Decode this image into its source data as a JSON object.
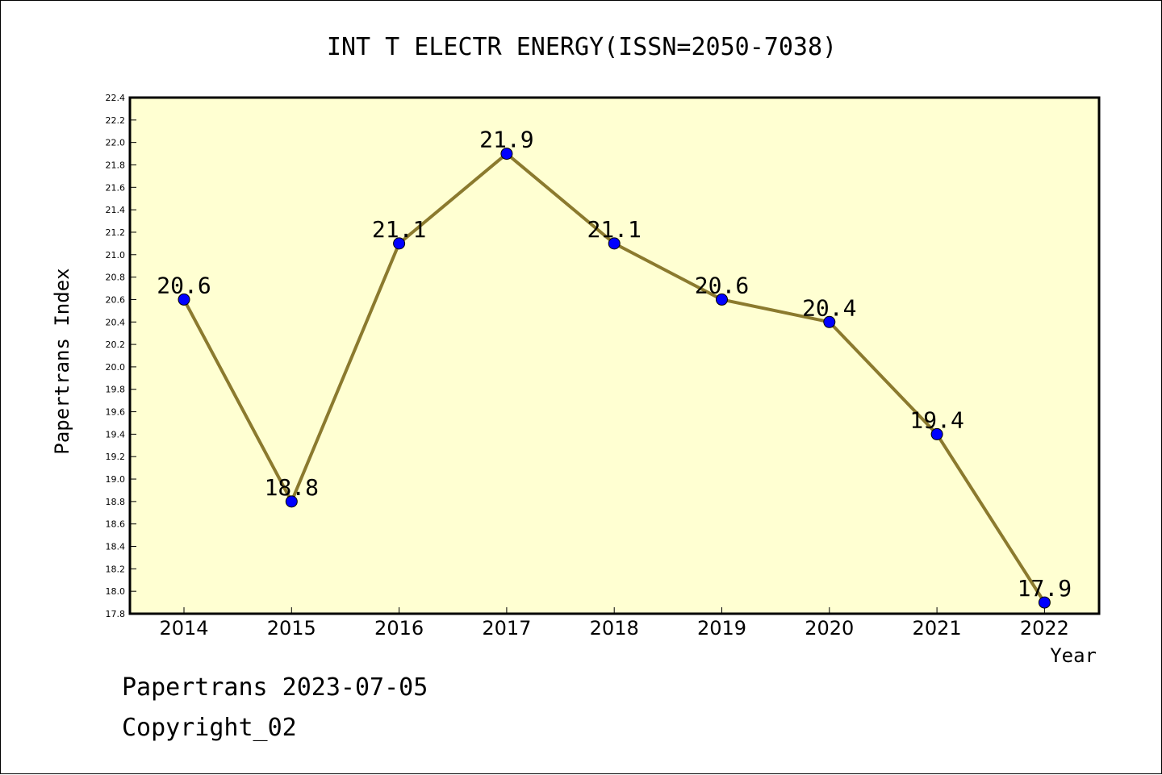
{
  "colors": {
    "plot_background": "#ffffd2",
    "line": "#8b7a2e",
    "marker": "#0000ff",
    "marker_edge": "#000000",
    "frame": "#000000"
  },
  "footer": {
    "line1": "Papertrans 2023-07-05",
    "line2": "Copyright_02"
  },
  "chart_data": {
    "type": "line",
    "title": "INT T ELECTR ENERGY(ISSN=2050-7038)",
    "xlabel": "Year",
    "ylabel": "Papertrans Index",
    "x": [
      "2014",
      "2015",
      "2016",
      "2017",
      "2018",
      "2019",
      "2020",
      "2021",
      "2022"
    ],
    "series": [
      {
        "values": [
          20.6,
          18.8,
          21.1,
          21.9,
          21.1,
          20.6,
          20.4,
          19.4,
          17.9
        ],
        "labels": [
          "20.6",
          "18.8",
          "21.1",
          "21.9",
          "21.1",
          "20.6",
          "20.4",
          "19.4",
          "17.9"
        ]
      }
    ],
    "ylim": [
      17.8,
      22.4
    ],
    "yticks": [
      "17.8",
      "18.0",
      "18.2",
      "18.4",
      "18.6",
      "18.8",
      "19.0",
      "19.2",
      "19.4",
      "19.6",
      "19.8",
      "20.0",
      "20.2",
      "20.4",
      "20.6",
      "20.8",
      "21.0",
      "21.2",
      "21.4",
      "21.6",
      "21.8",
      "22.0",
      "22.2",
      "22.4"
    ],
    "grid": false,
    "legend": "none"
  }
}
